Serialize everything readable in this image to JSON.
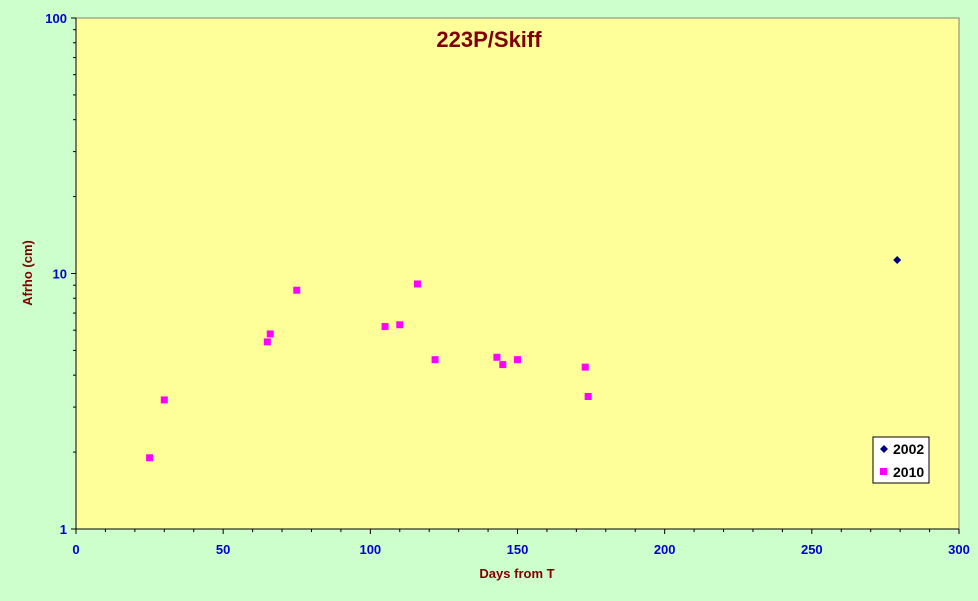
{
  "chart_data": {
    "type": "scatter",
    "title": "223P/Skiff",
    "xlabel": "Days from T",
    "ylabel": "Afrho (cm)",
    "xlim": [
      0,
      300
    ],
    "ylim": [
      1,
      100
    ],
    "y_scale": "log",
    "x_ticks": [
      "0",
      "50",
      "100",
      "150",
      "200",
      "250",
      "300"
    ],
    "y_ticks": [
      "1",
      "10",
      "100"
    ],
    "grid": false,
    "legend_position": "bottom-right",
    "series": [
      {
        "name": "2002",
        "color": "#000080",
        "marker": "diamond",
        "points": [
          [
            279,
            11.3
          ]
        ]
      },
      {
        "name": "2010",
        "color": "#ff00ff",
        "marker": "square",
        "points": [
          [
            25,
            1.9
          ],
          [
            30,
            3.2
          ],
          [
            65,
            5.4
          ],
          [
            66,
            5.8
          ],
          [
            75,
            8.6
          ],
          [
            105,
            6.2
          ],
          [
            110,
            6.3
          ],
          [
            116,
            9.1
          ],
          [
            122,
            4.6
          ],
          [
            143,
            4.7
          ],
          [
            145,
            4.4
          ],
          [
            150,
            4.6
          ],
          [
            173,
            4.3
          ],
          [
            174,
            3.3
          ]
        ]
      }
    ]
  }
}
